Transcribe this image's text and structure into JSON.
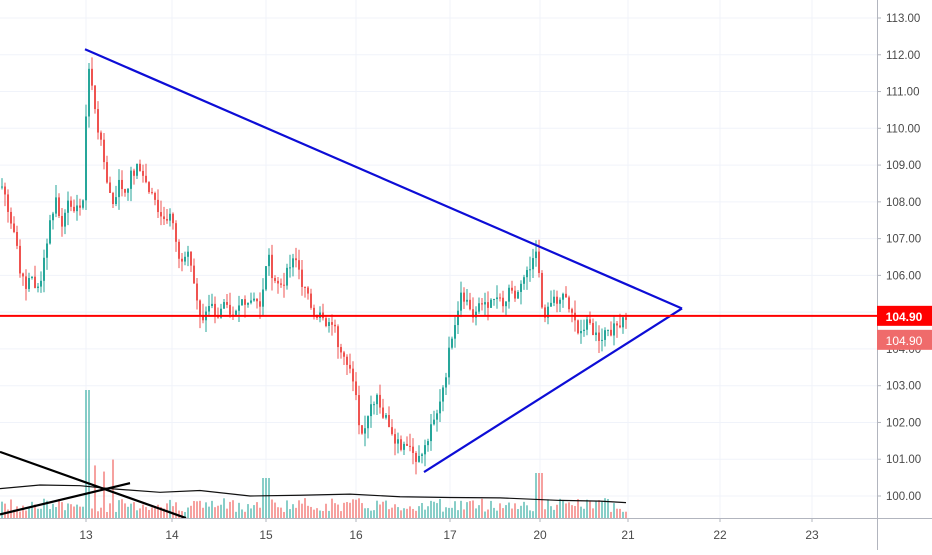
{
  "chart_data": {
    "type": "candlestick",
    "symbol_hidden": true,
    "x_ticks": [
      "13",
      "14",
      "15",
      "16",
      "17",
      "20",
      "21",
      "22",
      "23"
    ],
    "y_ticks": [
      "100.00",
      "101.00",
      "102.00",
      "103.00",
      "104.00",
      "105.00",
      "106.00",
      "107.00",
      "108.00",
      "109.00",
      "110.00",
      "111.00",
      "112.00",
      "113.00"
    ],
    "ylim": [
      99.4,
      113.4
    ],
    "grid": true,
    "price_line": {
      "value": 104.9,
      "label": "104.90",
      "color": "#ff0000"
    },
    "last_price": {
      "value": 104.9,
      "label": "104.90"
    },
    "close_path": [
      [
        0,
        108.5
      ],
      [
        5,
        108.1
      ],
      [
        10,
        107.5
      ],
      [
        15,
        107.0
      ],
      [
        20,
        106.0
      ],
      [
        25,
        105.6
      ],
      [
        30,
        106.2
      ],
      [
        35,
        105.4
      ],
      [
        40,
        106.0
      ],
      [
        45,
        106.8
      ],
      [
        50,
        107.6
      ],
      [
        55,
        108.1
      ],
      [
        60,
        107.3
      ],
      [
        65,
        108.0
      ],
      [
        70,
        107.7
      ],
      [
        75,
        108.0
      ],
      [
        80,
        107.6
      ],
      [
        84,
        108.7
      ],
      [
        86,
        112.0
      ],
      [
        89,
        111.4
      ],
      [
        93,
        110.8
      ],
      [
        98,
        109.8
      ],
      [
        103,
        109.1
      ],
      [
        108,
        108.3
      ],
      [
        112,
        108.0
      ],
      [
        118,
        108.5
      ],
      [
        124,
        108.3
      ],
      [
        130,
        108.7
      ],
      [
        136,
        108.9
      ],
      [
        142,
        108.8
      ],
      [
        146,
        108.4
      ],
      [
        152,
        108.1
      ],
      [
        158,
        107.8
      ],
      [
        164,
        107.5
      ],
      [
        170,
        107.9
      ],
      [
        174,
        107.0
      ],
      [
        180,
        106.1
      ],
      [
        186,
        106.8
      ],
      [
        192,
        106.0
      ],
      [
        197,
        105.0
      ],
      [
        202,
        104.8
      ],
      [
        207,
        105.3
      ],
      [
        212,
        105.1
      ],
      [
        218,
        104.9
      ],
      [
        224,
        105.2
      ],
      [
        230,
        104.7
      ],
      [
        236,
        105.0
      ],
      [
        242,
        105.4
      ],
      [
        248,
        105.3
      ],
      [
        254,
        105.5
      ],
      [
        260,
        105.0
      ],
      [
        266,
        106.6
      ],
      [
        272,
        106.0
      ],
      [
        278,
        105.7
      ],
      [
        284,
        105.9
      ],
      [
        290,
        106.3
      ],
      [
        296,
        106.4
      ],
      [
        302,
        105.7
      ],
      [
        308,
        105.3
      ],
      [
        314,
        105.0
      ],
      [
        320,
        104.9
      ],
      [
        326,
        104.5
      ],
      [
        332,
        104.8
      ],
      [
        336,
        104.2
      ],
      [
        342,
        104.0
      ],
      [
        348,
        103.6
      ],
      [
        352,
        103.0
      ],
      [
        356,
        102.5
      ],
      [
        360,
        101.6
      ],
      [
        364,
        102.0
      ],
      [
        370,
        102.5
      ],
      [
        376,
        102.8
      ],
      [
        382,
        102.2
      ],
      [
        388,
        102.0
      ],
      [
        394,
        101.6
      ],
      [
        400,
        101.4
      ],
      [
        406,
        101.5
      ],
      [
        412,
        101.2
      ],
      [
        418,
        101.0
      ],
      [
        424,
        101.3
      ],
      [
        430,
        101.8
      ],
      [
        436,
        102.2
      ],
      [
        440,
        102.8
      ],
      [
        444,
        103.2
      ],
      [
        448,
        103.9
      ],
      [
        452,
        104.6
      ],
      [
        456,
        105.0
      ],
      [
        460,
        105.6
      ],
      [
        466,
        105.3
      ],
      [
        472,
        104.9
      ],
      [
        478,
        105.1
      ],
      [
        484,
        105.3
      ],
      [
        490,
        105.2
      ],
      [
        496,
        105.4
      ],
      [
        502,
        105.1
      ],
      [
        508,
        105.5
      ],
      [
        514,
        105.4
      ],
      [
        520,
        105.7
      ],
      [
        526,
        106.0
      ],
      [
        532,
        106.3
      ],
      [
        536,
        106.7
      ],
      [
        540,
        105.2
      ],
      [
        546,
        104.9
      ],
      [
        552,
        105.4
      ],
      [
        558,
        105.2
      ],
      [
        564,
        105.5
      ],
      [
        570,
        104.9
      ],
      [
        576,
        104.6
      ],
      [
        582,
        104.5
      ],
      [
        588,
        104.7
      ],
      [
        594,
        104.4
      ],
      [
        600,
        104.3
      ],
      [
        606,
        104.6
      ],
      [
        612,
        104.5
      ],
      [
        618,
        104.7
      ],
      [
        622,
        104.9
      ],
      [
        626,
        104.9
      ]
    ],
    "trendlines": [
      {
        "name": "upper",
        "color": "#0d0dd6",
        "points": [
          [
            85,
            112.15
          ],
          [
            682,
            105.1
          ]
        ]
      },
      {
        "name": "lower",
        "color": "#0d0dd6",
        "points": [
          [
            424,
            100.65
          ],
          [
            682,
            105.1
          ]
        ]
      },
      {
        "name": "black-1",
        "color": "#000000",
        "points": [
          [
            0,
            101.2
          ],
          [
            186,
            99.4
          ]
        ]
      },
      {
        "name": "black-2",
        "color": "#000000",
        "points": [
          [
            0,
            99.5
          ],
          [
            130,
            100.35
          ]
        ]
      }
    ],
    "volume_profile": [
      [
        0,
        100.2
      ],
      [
        40,
        100.3
      ],
      [
        80,
        100.28
      ],
      [
        110,
        100.2
      ],
      [
        160,
        100.1
      ],
      [
        200,
        100.15
      ],
      [
        250,
        100.0
      ],
      [
        300,
        100.02
      ],
      [
        350,
        100.05
      ],
      [
        400,
        99.98
      ],
      [
        450,
        99.96
      ],
      [
        500,
        99.95
      ],
      [
        560,
        99.88
      ],
      [
        600,
        99.86
      ],
      [
        626,
        99.82
      ]
    ],
    "volume_max_data": 3.0
  }
}
